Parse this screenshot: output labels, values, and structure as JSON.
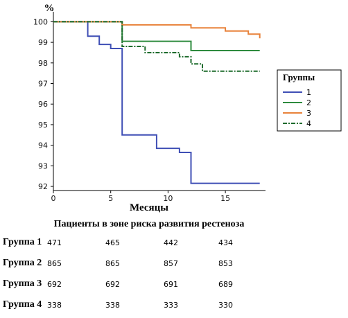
{
  "chart_data": {
    "type": "line",
    "step": true,
    "xlabel": "Месяцы",
    "ylabel": "%",
    "xlim": [
      0,
      18.5
    ],
    "ylim": [
      91.8,
      100.35
    ],
    "xticks": [
      0,
      5,
      10,
      15
    ],
    "yticks": [
      92,
      93,
      94,
      95,
      96,
      97,
      98,
      99,
      100
    ],
    "grid": false,
    "legend": {
      "title": "Группы",
      "position": "right"
    },
    "series": [
      {
        "name": "1",
        "color": "#3f4fb5",
        "dash": "solid",
        "points": [
          [
            0,
            100
          ],
          [
            3,
            100
          ],
          [
            3,
            99.3
          ],
          [
            4,
            99.3
          ],
          [
            4,
            98.9
          ],
          [
            5,
            98.9
          ],
          [
            5,
            98.7
          ],
          [
            6,
            98.7
          ],
          [
            6,
            94.5
          ],
          [
            9,
            94.5
          ],
          [
            9,
            93.85
          ],
          [
            11,
            93.85
          ],
          [
            11,
            93.65
          ],
          [
            12,
            93.65
          ],
          [
            12,
            92.15
          ],
          [
            18,
            92.15
          ]
        ]
      },
      {
        "name": "2",
        "color": "#2e8b3e",
        "dash": "solid",
        "points": [
          [
            0,
            100
          ],
          [
            6,
            100
          ],
          [
            6,
            99.05
          ],
          [
            12,
            99.05
          ],
          [
            12,
            98.6
          ],
          [
            18,
            98.6
          ]
        ]
      },
      {
        "name": "3",
        "color": "#e8823a",
        "dash": "solid",
        "points": [
          [
            0,
            100
          ],
          [
            6,
            100
          ],
          [
            6,
            99.85
          ],
          [
            12,
            99.85
          ],
          [
            12,
            99.7
          ],
          [
            15,
            99.7
          ],
          [
            15,
            99.55
          ],
          [
            17,
            99.55
          ],
          [
            17,
            99.4
          ],
          [
            18,
            99.4
          ],
          [
            18,
            99.2
          ]
        ]
      },
      {
        "name": "4",
        "color": "#1d6b2c",
        "dash": "dashdot",
        "points": [
          [
            0,
            100
          ],
          [
            6,
            100
          ],
          [
            6,
            98.8
          ],
          [
            8,
            98.8
          ],
          [
            8,
            98.5
          ],
          [
            11,
            98.5
          ],
          [
            11,
            98.3
          ],
          [
            12,
            98.3
          ],
          [
            12,
            97.95
          ],
          [
            13,
            97.95
          ],
          [
            13,
            97.6
          ],
          [
            18,
            97.6
          ]
        ]
      }
    ]
  },
  "risk_table": {
    "title": "Пациенты в зоне риска развития рестеноза",
    "rows": [
      {
        "group": "Группа 1",
        "values": [
          "471",
          "465",
          "442",
          "434"
        ]
      },
      {
        "group": "Группа 2",
        "values": [
          "865",
          "865",
          "857",
          "853"
        ]
      },
      {
        "group": "Группа 3",
        "values": [
          "692",
          "692",
          "691",
          "689"
        ]
      },
      {
        "group": "Группа 4",
        "values": [
          "338",
          "338",
          "333",
          "330"
        ]
      }
    ]
  }
}
